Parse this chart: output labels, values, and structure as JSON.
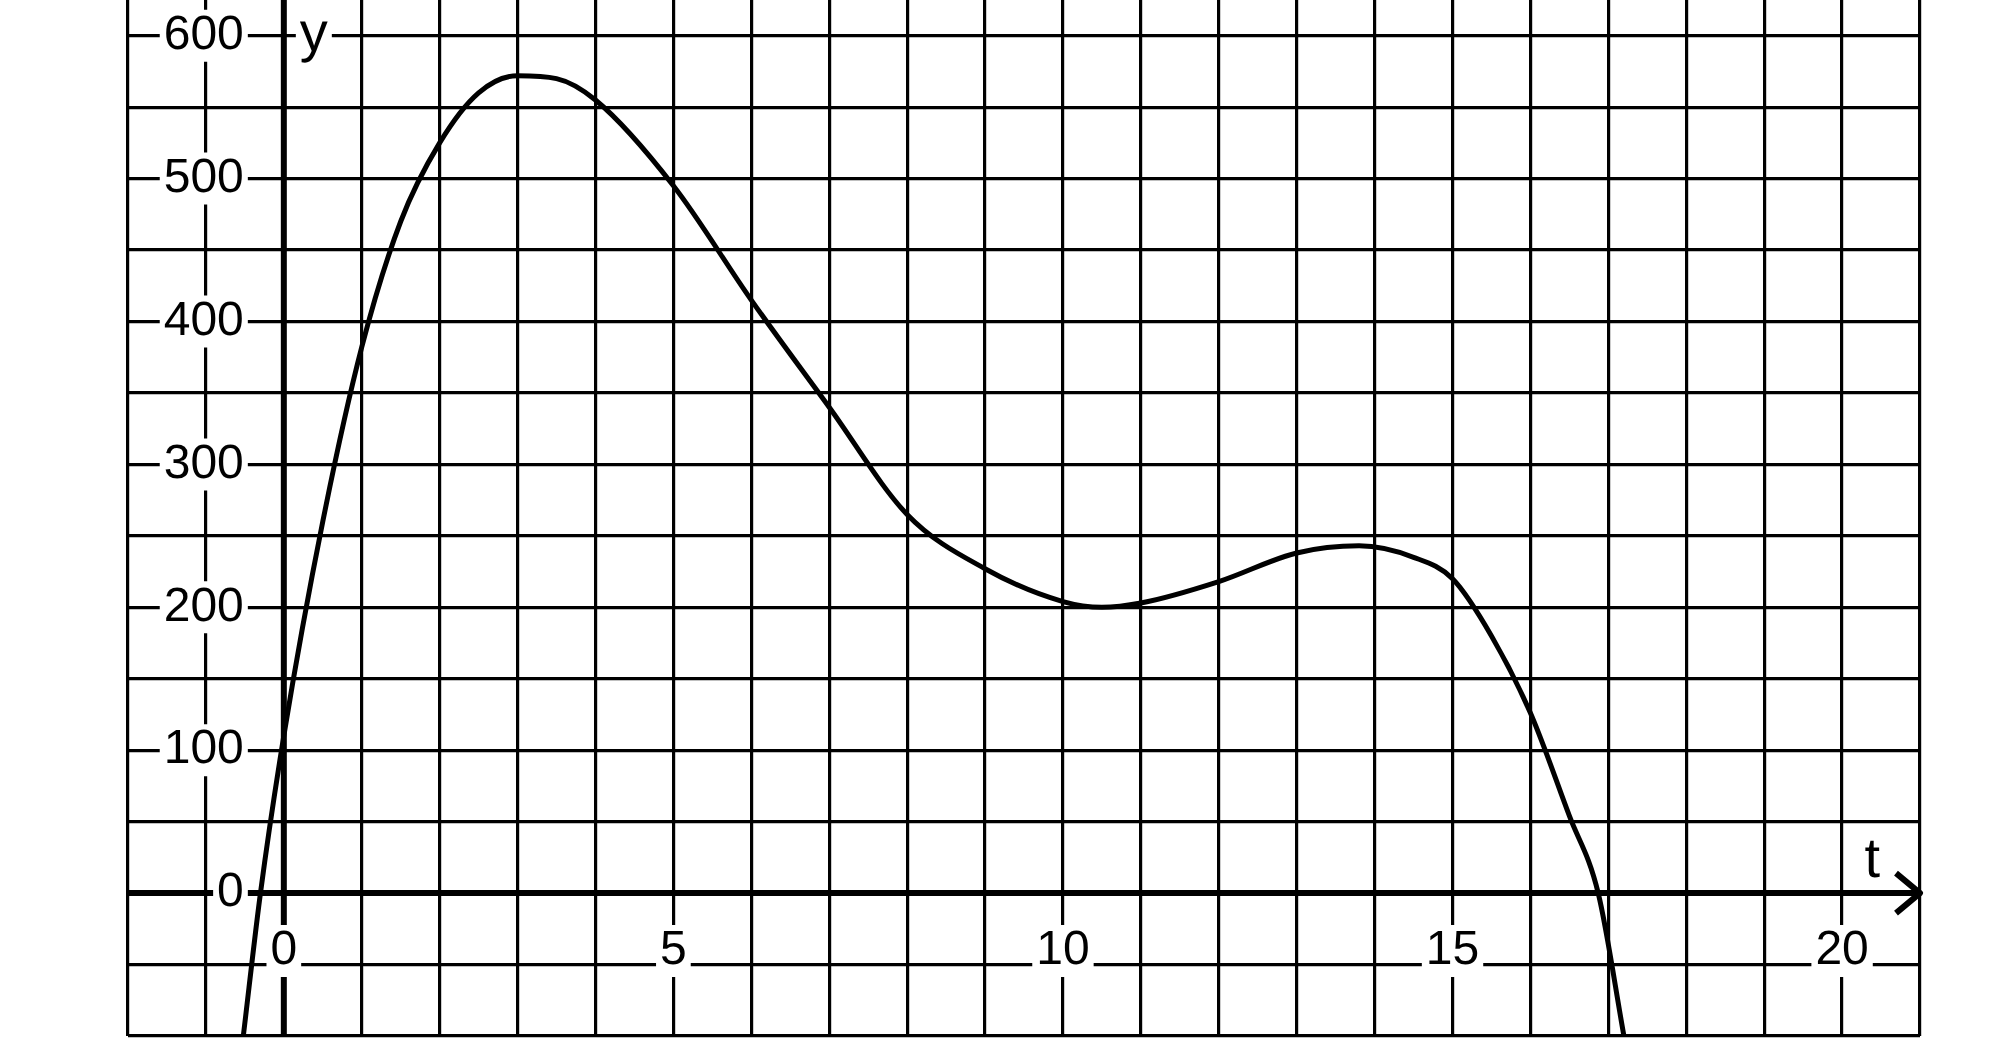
{
  "chart_data": {
    "type": "line",
    "xlabel": "t",
    "ylabel": "y",
    "x": [
      -0.52,
      -0.3,
      0,
      0.5,
      1,
      1.5,
      2,
      2.5,
      3,
      3.5,
      4,
      5,
      6,
      7,
      8,
      9,
      10,
      10.5,
      11,
      12,
      13,
      13.8,
      14.5,
      15,
      15.5,
      16,
      16.5,
      16.87,
      17.2
    ],
    "series": [
      {
        "color": "#000000",
        "values": [
          -100,
          0,
          110,
          260,
          382,
          470,
          525,
          560,
          572,
          570,
          555,
          495,
          415,
          340,
          265,
          227,
          204,
          200,
          203,
          218,
          238,
          243,
          235,
          220,
          180,
          126,
          54,
          0,
          -100
        ]
      }
    ],
    "xlim": [
      -2,
      21
    ],
    "ylim": [
      -100,
      625
    ],
    "xticks": [
      {
        "value": -2,
        "label": null
      },
      {
        "value": -1,
        "label": null
      },
      0,
      {
        "value": 1,
        "label": null
      },
      {
        "value": 2,
        "label": null
      },
      {
        "value": 3,
        "label": null
      },
      {
        "value": 4,
        "label": null
      },
      5,
      {
        "value": 6,
        "label": null
      },
      {
        "value": 7,
        "label": null
      },
      {
        "value": 8,
        "label": null
      },
      {
        "value": 9,
        "label": null
      },
      10,
      {
        "value": 11,
        "label": null
      },
      {
        "value": 12,
        "label": null
      },
      {
        "value": 13,
        "label": null
      },
      {
        "value": 14,
        "label": null
      },
      15,
      {
        "value": 16,
        "label": null
      },
      {
        "value": 17,
        "label": null
      },
      {
        "value": 18,
        "label": null
      },
      {
        "value": 19,
        "label": null
      },
      20,
      {
        "value": 21,
        "label": null
      }
    ],
    "yticks": [
      {
        "value": -100,
        "label": null
      },
      {
        "value": -50,
        "label": null
      },
      0,
      {
        "value": 50,
        "label": null
      },
      100,
      {
        "value": 150,
        "label": null
      },
      200,
      {
        "value": 250,
        "label": null
      },
      300,
      {
        "value": 350,
        "label": null
      },
      400,
      {
        "value": 450,
        "label": null
      },
      500,
      {
        "value": 550,
        "label": null
      },
      600
    ],
    "grid": true
  }
}
